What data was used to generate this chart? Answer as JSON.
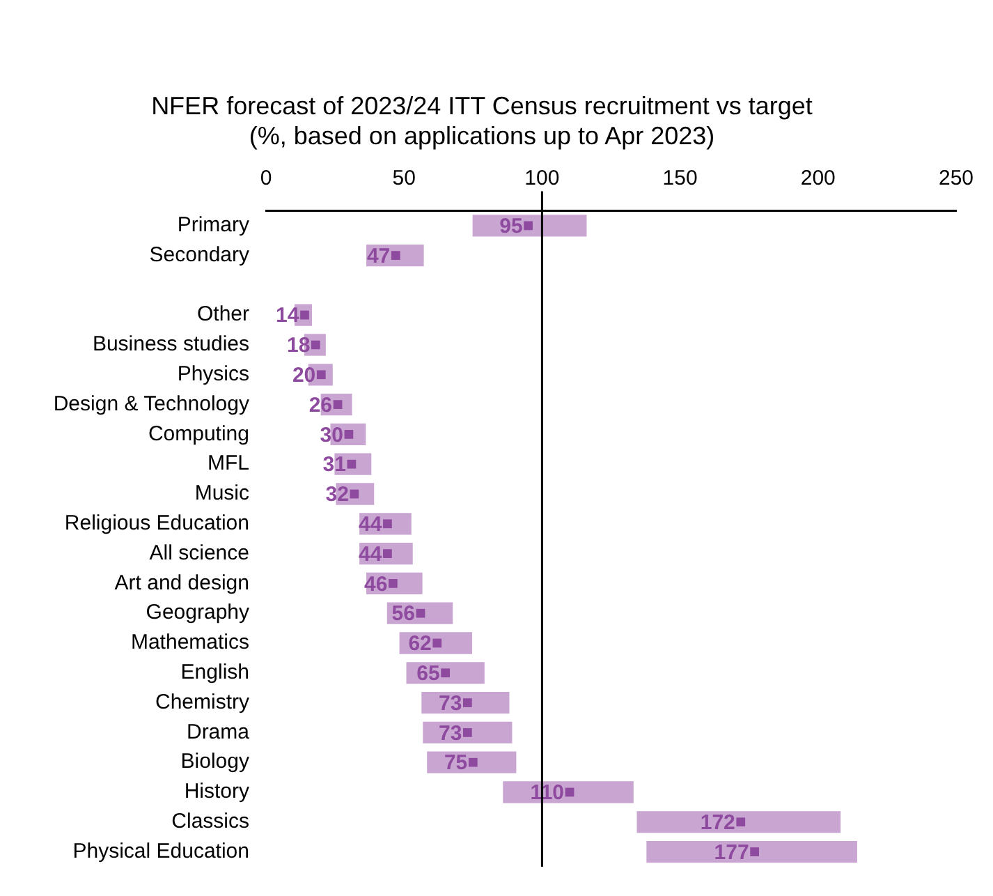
{
  "chart_data": {
    "type": "bar",
    "orientation": "horizontal",
    "title": "NFER forecast of 2023/24 ITT Census recruitment vs target",
    "subtitle": "(%, based on applications up to Apr 2023)",
    "categories": [
      "Primary",
      "Secondary",
      null,
      "Other",
      "Business studies",
      "Physics",
      "Design & Technology",
      "Computing",
      "MFL",
      "Music",
      "Religious Education",
      "All science",
      "Art and design",
      "Geography",
      "Mathematics",
      "English",
      "Chemistry",
      "Drama",
      "Biology",
      "History",
      "Classics",
      "Physical Education"
    ],
    "series": [
      {
        "color": "#c9a6d1",
        "base": [
          75,
          36.5,
          null,
          10.5,
          14,
          15.5,
          20,
          23.5,
          25,
          25.5,
          34,
          34,
          36.5,
          44,
          48.5,
          51,
          56.5,
          57,
          58.5,
          86,
          134.5,
          138
        ],
        "values": [
          41,
          20.5,
          null,
          6,
          7.5,
          8.5,
          11,
          12.5,
          13,
          13.5,
          18.5,
          19,
          20,
          23.5,
          26,
          28,
          31.5,
          32,
          32,
          47,
          73.5,
          76
        ]
      },
      {
        "type": "scatter",
        "color": "#8e4a9e",
        "marker": "square",
        "values": [
          95,
          47,
          null,
          14,
          18,
          20,
          26,
          30,
          31,
          32,
          44,
          44,
          46,
          56,
          62,
          65,
          73,
          73,
          75,
          110,
          172,
          177
        ],
        "value_labels": [
          "95",
          "47",
          null,
          "14",
          "18",
          "20",
          "26",
          "30",
          "31",
          "32",
          "44",
          "44",
          "46",
          "56",
          "62",
          "65",
          "73",
          "73",
          "75",
          "110",
          "172",
          "177"
        ]
      }
    ],
    "xlim": [
      0,
      250
    ],
    "xticks": [
      0,
      50,
      100,
      150,
      200,
      250
    ],
    "grid": false,
    "legend": false,
    "ref_lines": [
      {
        "axis": "x",
        "value": 100,
        "color": "#000000"
      }
    ]
  }
}
